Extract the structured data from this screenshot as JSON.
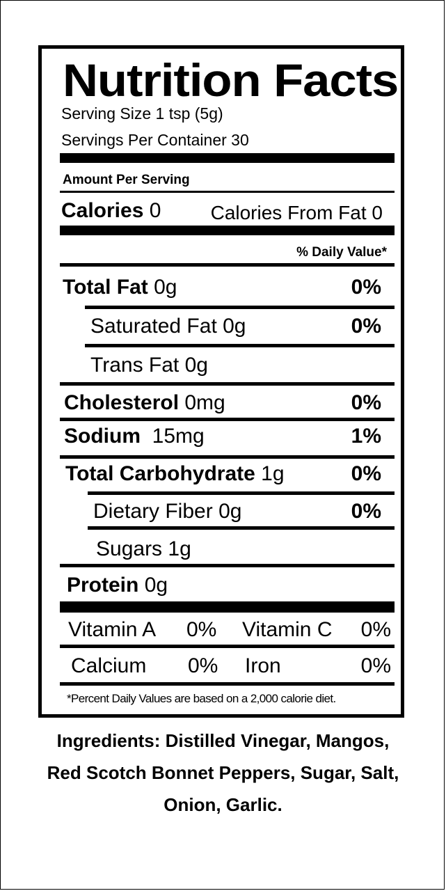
{
  "label": {
    "title": "Nutrition Facts",
    "serving_size": "Serving Size 1 tsp (5g)",
    "servings_per_container": "Servings Per Container 30",
    "amount_per_serving": "Amount Per Serving",
    "calories": {
      "label": "Calories",
      "value": "0"
    },
    "calories_from_fat": "Calories From Fat 0",
    "daily_value_header": "% Daily Value*",
    "nutrients": [
      {
        "name": "Total Fat",
        "amount": "0g",
        "dv": "0%"
      },
      {
        "name": "Saturated Fat",
        "amount": "0g",
        "dv": "0%"
      },
      {
        "name": "Trans Fat",
        "amount": "0g",
        "dv": ""
      },
      {
        "name": "Cholesterol",
        "amount": "0mg",
        "dv": "0%"
      },
      {
        "name": "Sodium",
        "amount": "15mg",
        "dv": "1%"
      },
      {
        "name": "Total Carbohydrate",
        "amount": "1g",
        "dv": "0%"
      },
      {
        "name": "Dietary Fiber",
        "amount": "0g",
        "dv": "0%"
      },
      {
        "name": "Sugars",
        "amount": "1g",
        "dv": ""
      },
      {
        "name": "Protein",
        "amount": "0g",
        "dv": ""
      }
    ],
    "vitamins": [
      {
        "name": "Vitamin A",
        "dv": "0%"
      },
      {
        "name": "Vitamin C",
        "dv": "0%"
      },
      {
        "name": "Calcium",
        "dv": "0%"
      },
      {
        "name": "Iron",
        "dv": "0%"
      }
    ],
    "footnote": "*Percent Daily Values are based on a 2,000 calorie diet."
  },
  "ingredients": [
    "Ingredients: Distilled Vinegar, Mangos,",
    "Red Scotch Bonnet Peppers, Sugar, Salt,",
    "Onion, Garlic."
  ]
}
